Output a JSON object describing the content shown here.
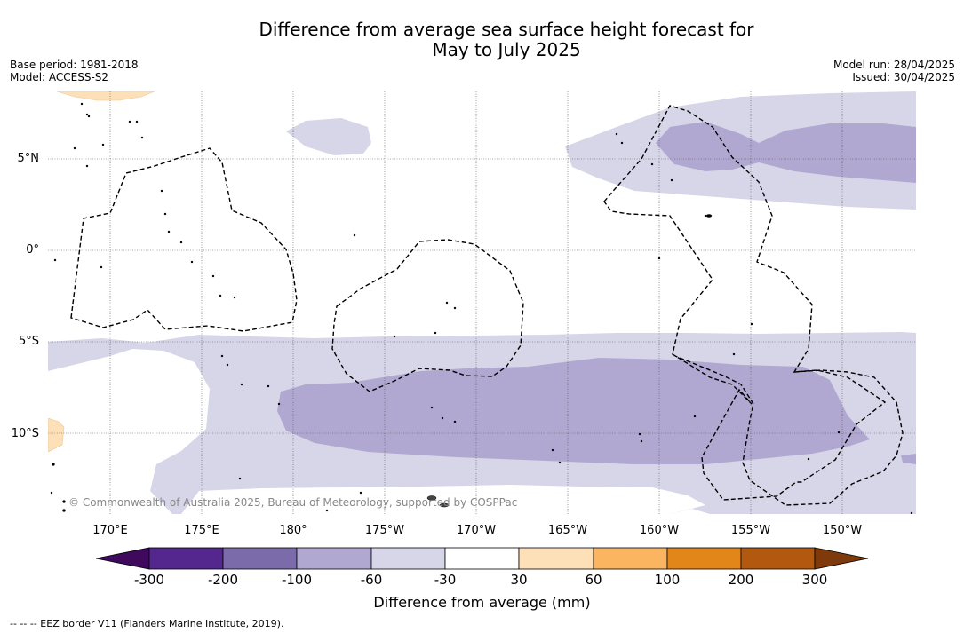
{
  "title_line1": "Difference from average sea surface height forecast for",
  "title_line2": "May to July 2025",
  "meta": {
    "base_period": "Base period: 1981-2018",
    "model": "Model: ACCESS-S2",
    "model_run": "Model run: 28/04/2025",
    "issued": "Issued: 30/04/2025"
  },
  "latitude_labels": [
    "5°N",
    "0°",
    "5°S",
    "10°S"
  ],
  "longitude_labels": [
    "170°E",
    "175°E",
    "180°",
    "175°W",
    "170°W",
    "165°W",
    "160°W",
    "155°W",
    "150°W"
  ],
  "copyright": "© Commonwealth of Australia 2025, Bureau of Meteorology, supported by COSPPac",
  "colorbar": {
    "label": "Difference from average (mm)",
    "ticks": [
      "-300",
      "-200",
      "-100",
      "-60",
      "-30",
      "30",
      "60",
      "100",
      "200",
      "300"
    ],
    "colors": {
      "below_min": "#3f0a5e",
      "m300_m200": "#54278f",
      "m200_m100": "#7c6bab",
      "m100_m60": "#b0a8d1",
      "m60_m30": "#d6d6e8",
      "m30_30": "#ffffff",
      "p30_p60": "#fde0b8",
      "p60_p100": "#fbb45f",
      "p100_p200": "#e2861a",
      "p200_p300": "#b3590f",
      "above_max": "#7e3a0a"
    }
  },
  "eez_legend": "--  --  -- EEZ border V11 (Flanders Marine Institute, 2019)."
}
